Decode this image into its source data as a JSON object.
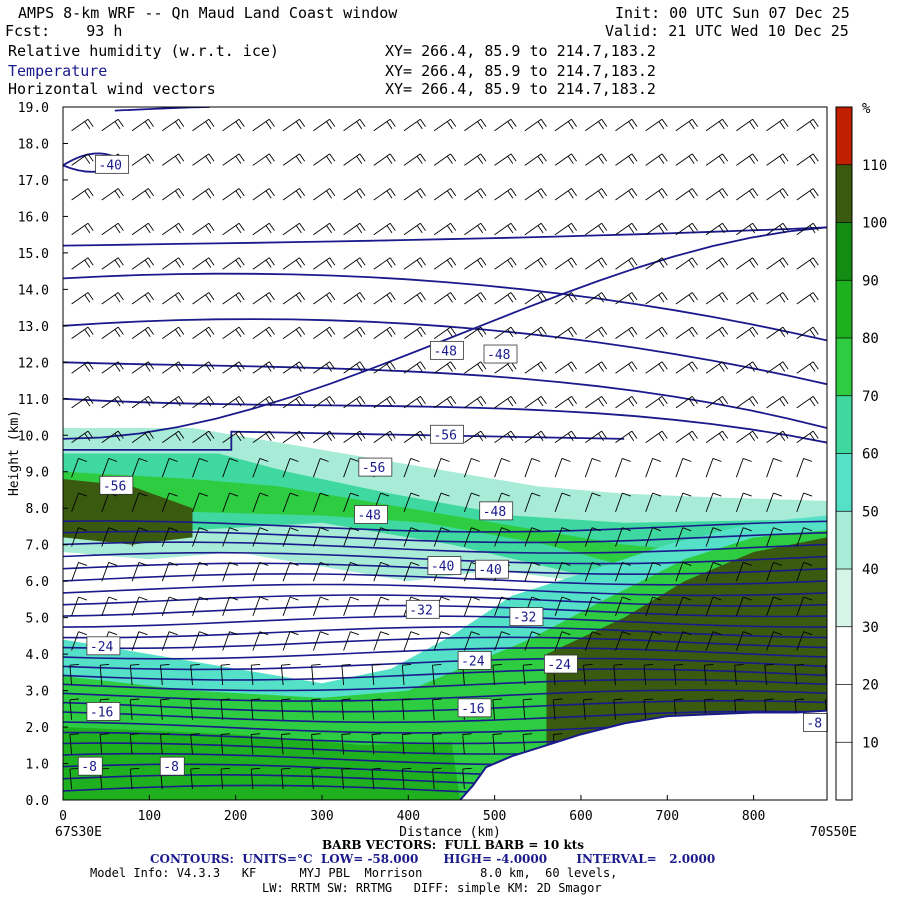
{
  "header": {
    "title": "AMPS 8-km WRF -- Qn Maud Land Coast window",
    "fcst": "Fcst:    93 h",
    "init": "Init: 00 UTC Sun 07 Dec 25",
    "valid": "Valid: 21 UTC Wed 10 Dec 25",
    "fields": [
      {
        "name": "Relative humidity (w.r.t. ice)",
        "xy": "XY= 266.4, 85.9 to 214.7,183.2"
      },
      {
        "name": "Temperature",
        "xy": "XY= 266.4, 85.9 to 214.7,183.2"
      },
      {
        "name": "Horizontal wind vectors",
        "xy": "XY= 266.4, 85.9 to 214.7,183.2"
      }
    ]
  },
  "colors": {
    "contour": "#1a1a8c",
    "terrain": "#ffffff",
    "rh_bins": [
      "#ffffff",
      "#ffffff",
      "#ffffff",
      "#d6f5e8",
      "#a8ecd8",
      "#55e0c8",
      "#3fd8a0",
      "#2ecc40",
      "#1fb01f",
      "#138c13",
      "#3a5a10",
      "#c02000"
    ]
  },
  "chart_data": {
    "type": "contour",
    "xlabel": "Distance (km)",
    "ylabel": "Height (km)",
    "xlim": [
      0,
      885
    ],
    "ylim": [
      0,
      19
    ],
    "xticks": [
      0,
      100,
      200,
      300,
      400,
      500,
      600,
      700,
      800
    ],
    "yticks": [
      "0.0",
      "1.0",
      "2.0",
      "3.0",
      "4.0",
      "5.0",
      "6.0",
      "7.0",
      "8.0",
      "9.0",
      "10.0",
      "11.0",
      "12.0",
      "13.0",
      "14.0",
      "15.0",
      "16.0",
      "17.0",
      "18.0",
      "19.0"
    ],
    "left_endpoint": "67S30E",
    "right_endpoint": "70S50E",
    "colorbar": {
      "unit": "%",
      "ticks": [
        10,
        20,
        30,
        40,
        50,
        60,
        70,
        80,
        90,
        100,
        110
      ],
      "range": [
        0,
        120
      ]
    },
    "temperature_labels": [
      {
        "text": "-40",
        "x": 40,
        "y": 17.4
      },
      {
        "text": "-48",
        "x": 428,
        "y": 12.3
      },
      {
        "text": "-48",
        "x": 490,
        "y": 12.2
      },
      {
        "text": "-56",
        "x": 428,
        "y": 10.0
      },
      {
        "text": "-56",
        "x": 345,
        "y": 9.1
      },
      {
        "text": "-56",
        "x": 45,
        "y": 8.6
      },
      {
        "text": "-48",
        "x": 340,
        "y": 7.8
      },
      {
        "text": "-48",
        "x": 485,
        "y": 7.9
      },
      {
        "text": "-40",
        "x": 425,
        "y": 6.4
      },
      {
        "text": "-40",
        "x": 480,
        "y": 6.3
      },
      {
        "text": "-32",
        "x": 400,
        "y": 5.2
      },
      {
        "text": "-32",
        "x": 520,
        "y": 5.0
      },
      {
        "text": "-24",
        "x": 30,
        "y": 4.2
      },
      {
        "text": "-24",
        "x": 460,
        "y": 3.8
      },
      {
        "text": "-24",
        "x": 560,
        "y": 3.7
      },
      {
        "text": "-16",
        "x": 30,
        "y": 2.4
      },
      {
        "text": "-16",
        "x": 460,
        "y": 2.5
      },
      {
        "text": "-8",
        "x": 20,
        "y": 0.9
      },
      {
        "text": "-8",
        "x": 115,
        "y": 0.9
      },
      {
        "text": "-8",
        "x": 860,
        "y": 2.1
      }
    ],
    "terrain_profile": [
      [
        460,
        0
      ],
      [
        475,
        0.4
      ],
      [
        490,
        0.9
      ],
      [
        520,
        1.2
      ],
      [
        560,
        1.5
      ],
      [
        600,
        1.8
      ],
      [
        650,
        2.1
      ],
      [
        700,
        2.3
      ],
      [
        750,
        2.35
      ],
      [
        800,
        2.4
      ],
      [
        850,
        2.4
      ],
      [
        885,
        2.45
      ]
    ],
    "grid": false
  },
  "footer": {
    "barb": "BARB VECTORS:  FULL BARB = 10 kts",
    "contours": "CONTOURS:  UNITS=°C  LOW= -58.000      HIGH= -4.0000       INTERVAL=   2.0000",
    "model1": "Model Info: V4.3.3   KF      MYJ PBL  Morrison        8.0 km,  60 levels,",
    "model2": "LW: RRTM SW: RRTMG   DIFF: simple KM: 2D Smagor"
  }
}
